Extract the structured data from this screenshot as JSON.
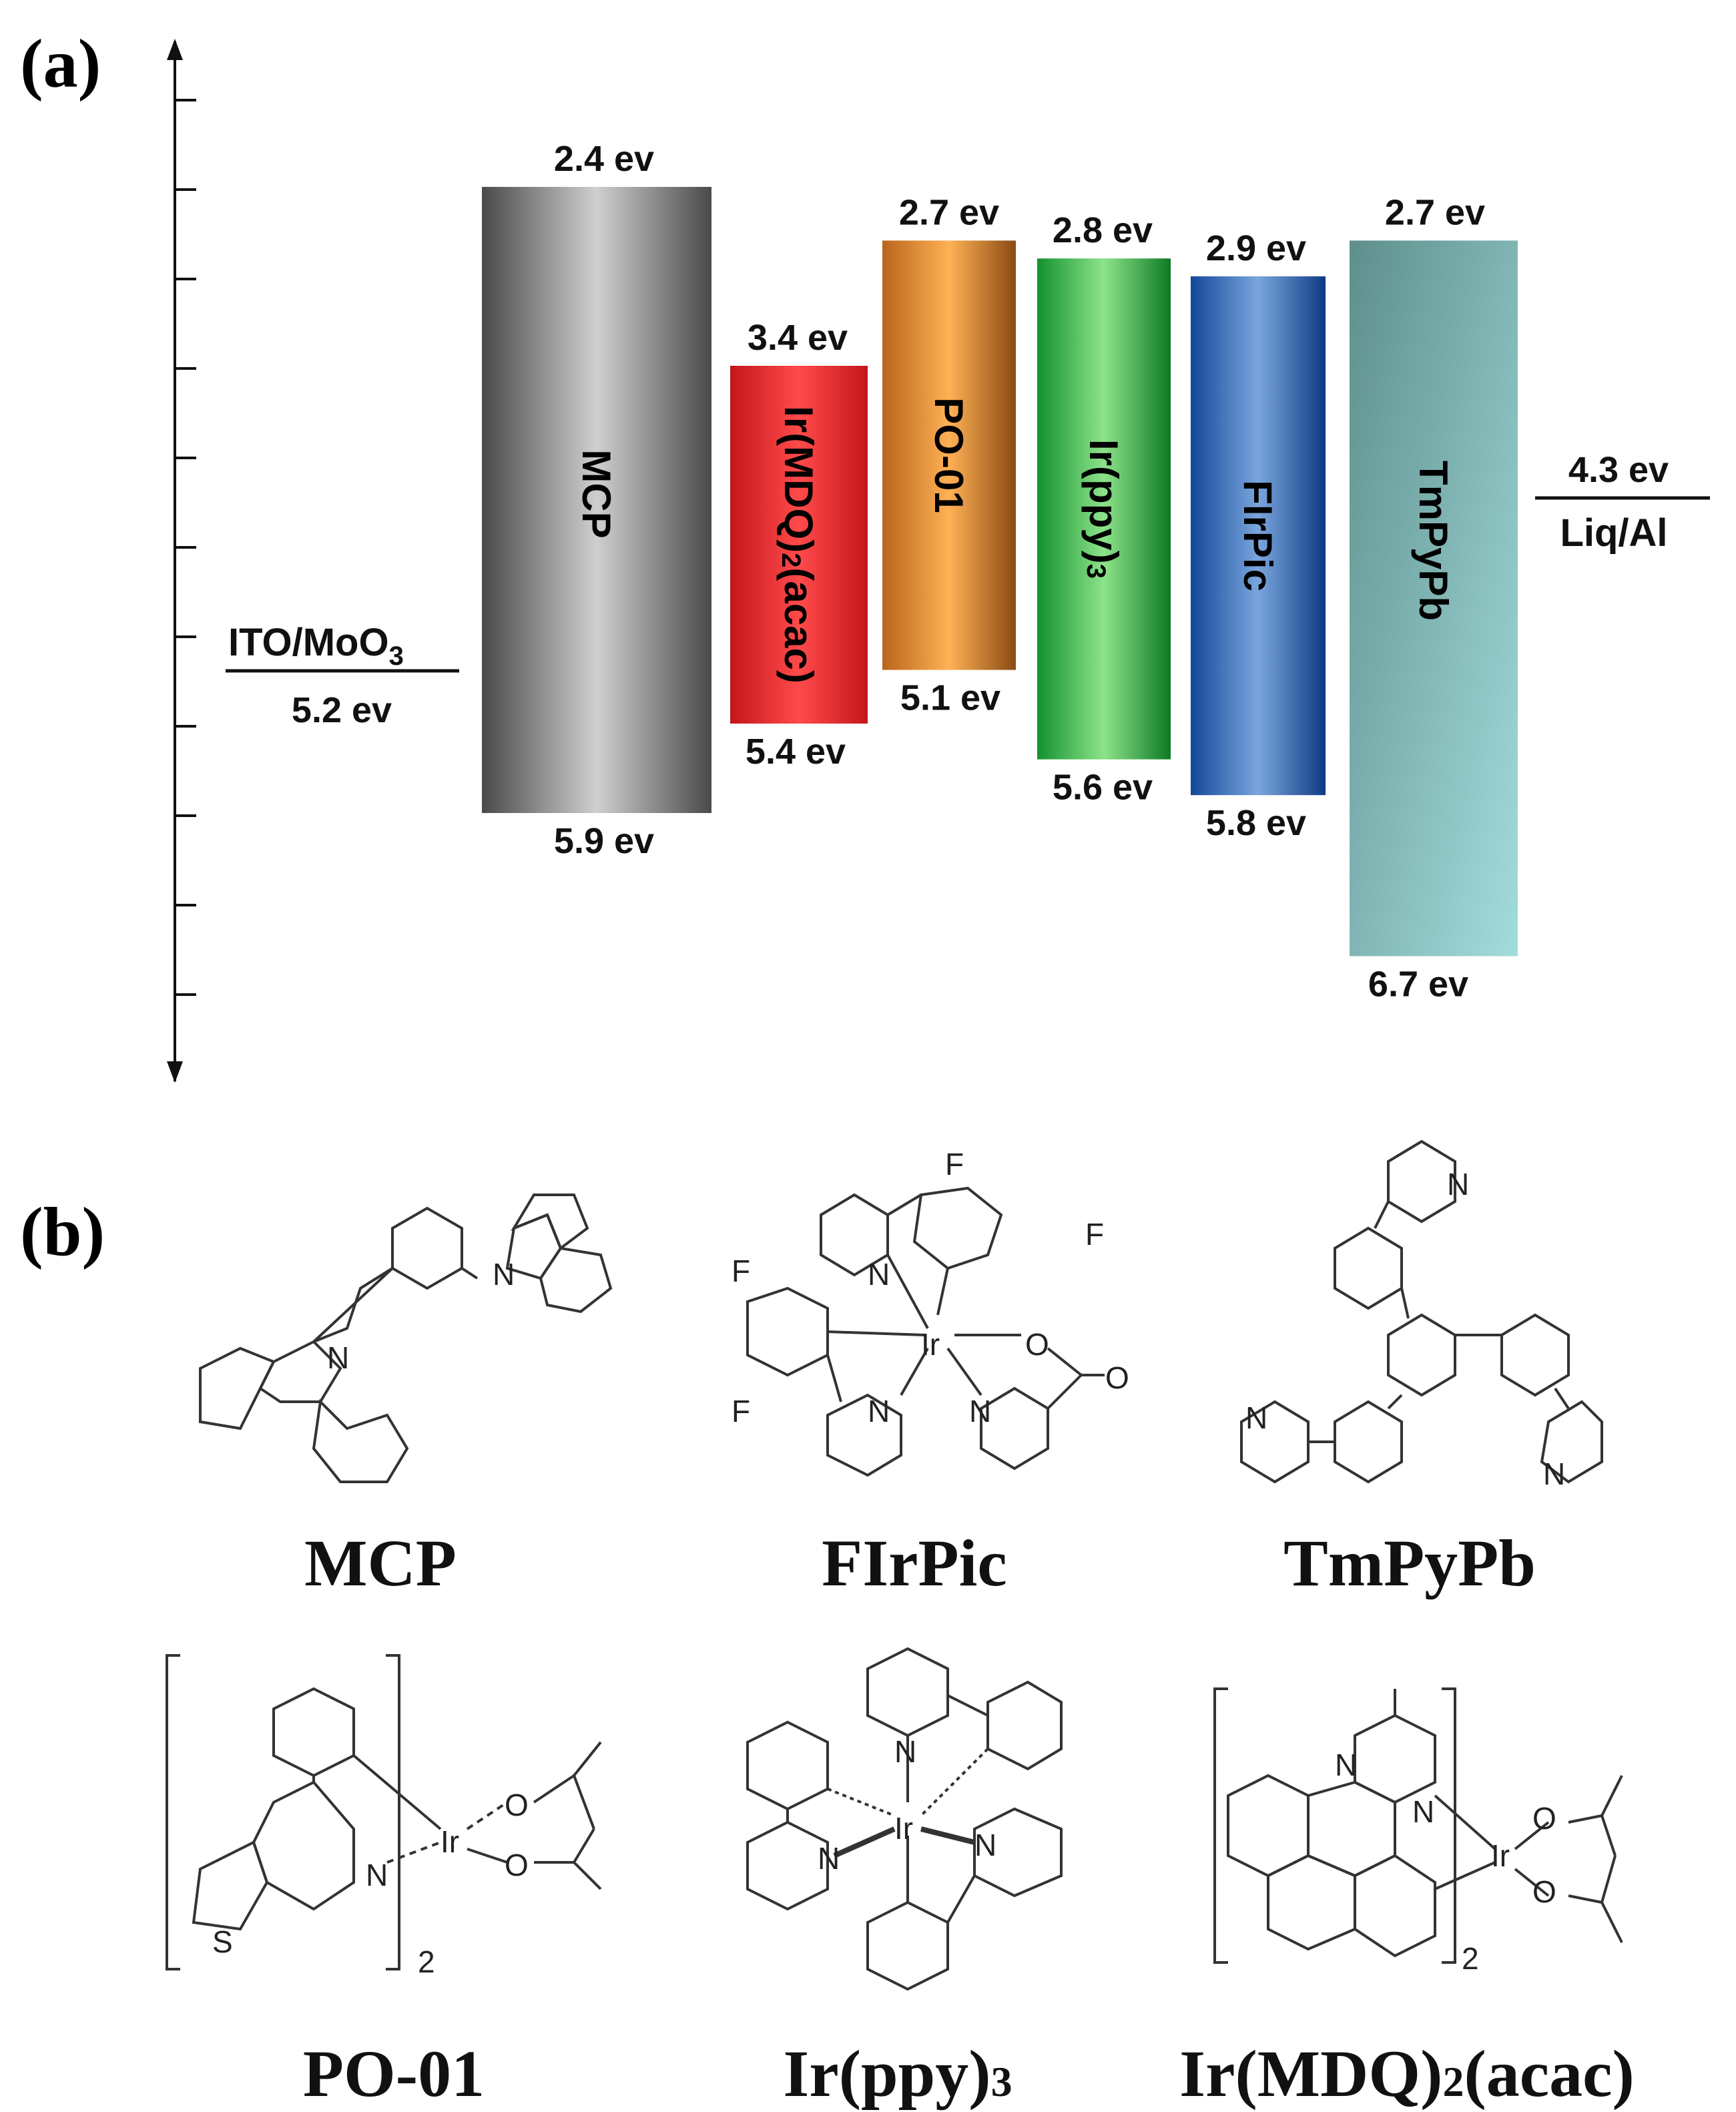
{
  "panel_a": {
    "label": "(a)",
    "levels": [
      {
        "name": "MCP",
        "lumo": "2.4 ev",
        "homo": "5.9 ev",
        "lumo_value": 2.4,
        "homo_value": 5.9,
        "colors": [
          "#4a4a4a",
          "#cfcfcf",
          "#4a4a4a"
        ]
      },
      {
        "name": "Ir(MDQ)",
        "name_sub": "2",
        "name_tail": "(acac)",
        "lumo": "3.4 ev",
        "homo": "5.4 ev",
        "lumo_value": 3.4,
        "homo_value": 5.4,
        "colors": [
          "#c4161c",
          "#ff4a4a",
          "#c4161c"
        ]
      },
      {
        "name": "PO-01",
        "lumo": "2.7 ev",
        "homo": "5.1 ev",
        "lumo_value": 2.7,
        "homo_value": 5.1,
        "colors": [
          "#b9651c",
          "#ffb155",
          "#8a4a12"
        ]
      },
      {
        "name": "Ir(ppy)",
        "name_sub": "3",
        "lumo": "2.8 ev",
        "homo": "5.6 ev",
        "lumo_value": 2.8,
        "homo_value": 5.6,
        "colors": [
          "#12922f",
          "#8de38a",
          "#0d7a24"
        ]
      },
      {
        "name": "FIrPic",
        "lumo": "2.9 ev",
        "homo": "5.8 ev",
        "lumo_value": 2.9,
        "homo_value": 5.8,
        "colors": [
          "#14479a",
          "#7aa6dd",
          "#0e3a84"
        ]
      },
      {
        "name": "TmPyPb",
        "lumo": "2.7 ev",
        "homo": "6.7 ev",
        "lumo_value": 2.7,
        "homo_value": 6.7,
        "colors": [
          "#5e8f8c",
          "#a3dcdc"
        ]
      }
    ],
    "anode": {
      "name": "ITO/MoO",
      "name_sub": "3",
      "value": "5.2 ev",
      "level": 5.2
    },
    "cathode": {
      "value": "4.3 ev",
      "name": "Liq/Al",
      "level": 4.3
    }
  },
  "panel_b": {
    "label": "(b)",
    "molecules": [
      {
        "name": "MCP"
      },
      {
        "name": "FIrPic"
      },
      {
        "name": "TmPyPb"
      },
      {
        "name": "PO-01"
      },
      {
        "name": "Ir(ppy)",
        "name_sub": "3"
      },
      {
        "name": "Ir(MDQ)",
        "name_sub": "2",
        "name_tail": "(acac)"
      }
    ],
    "subscript_2": "2",
    "atoms": {
      "N": "N",
      "F": "F",
      "O": "O",
      "S": "S",
      "Ir": "Ir"
    }
  }
}
